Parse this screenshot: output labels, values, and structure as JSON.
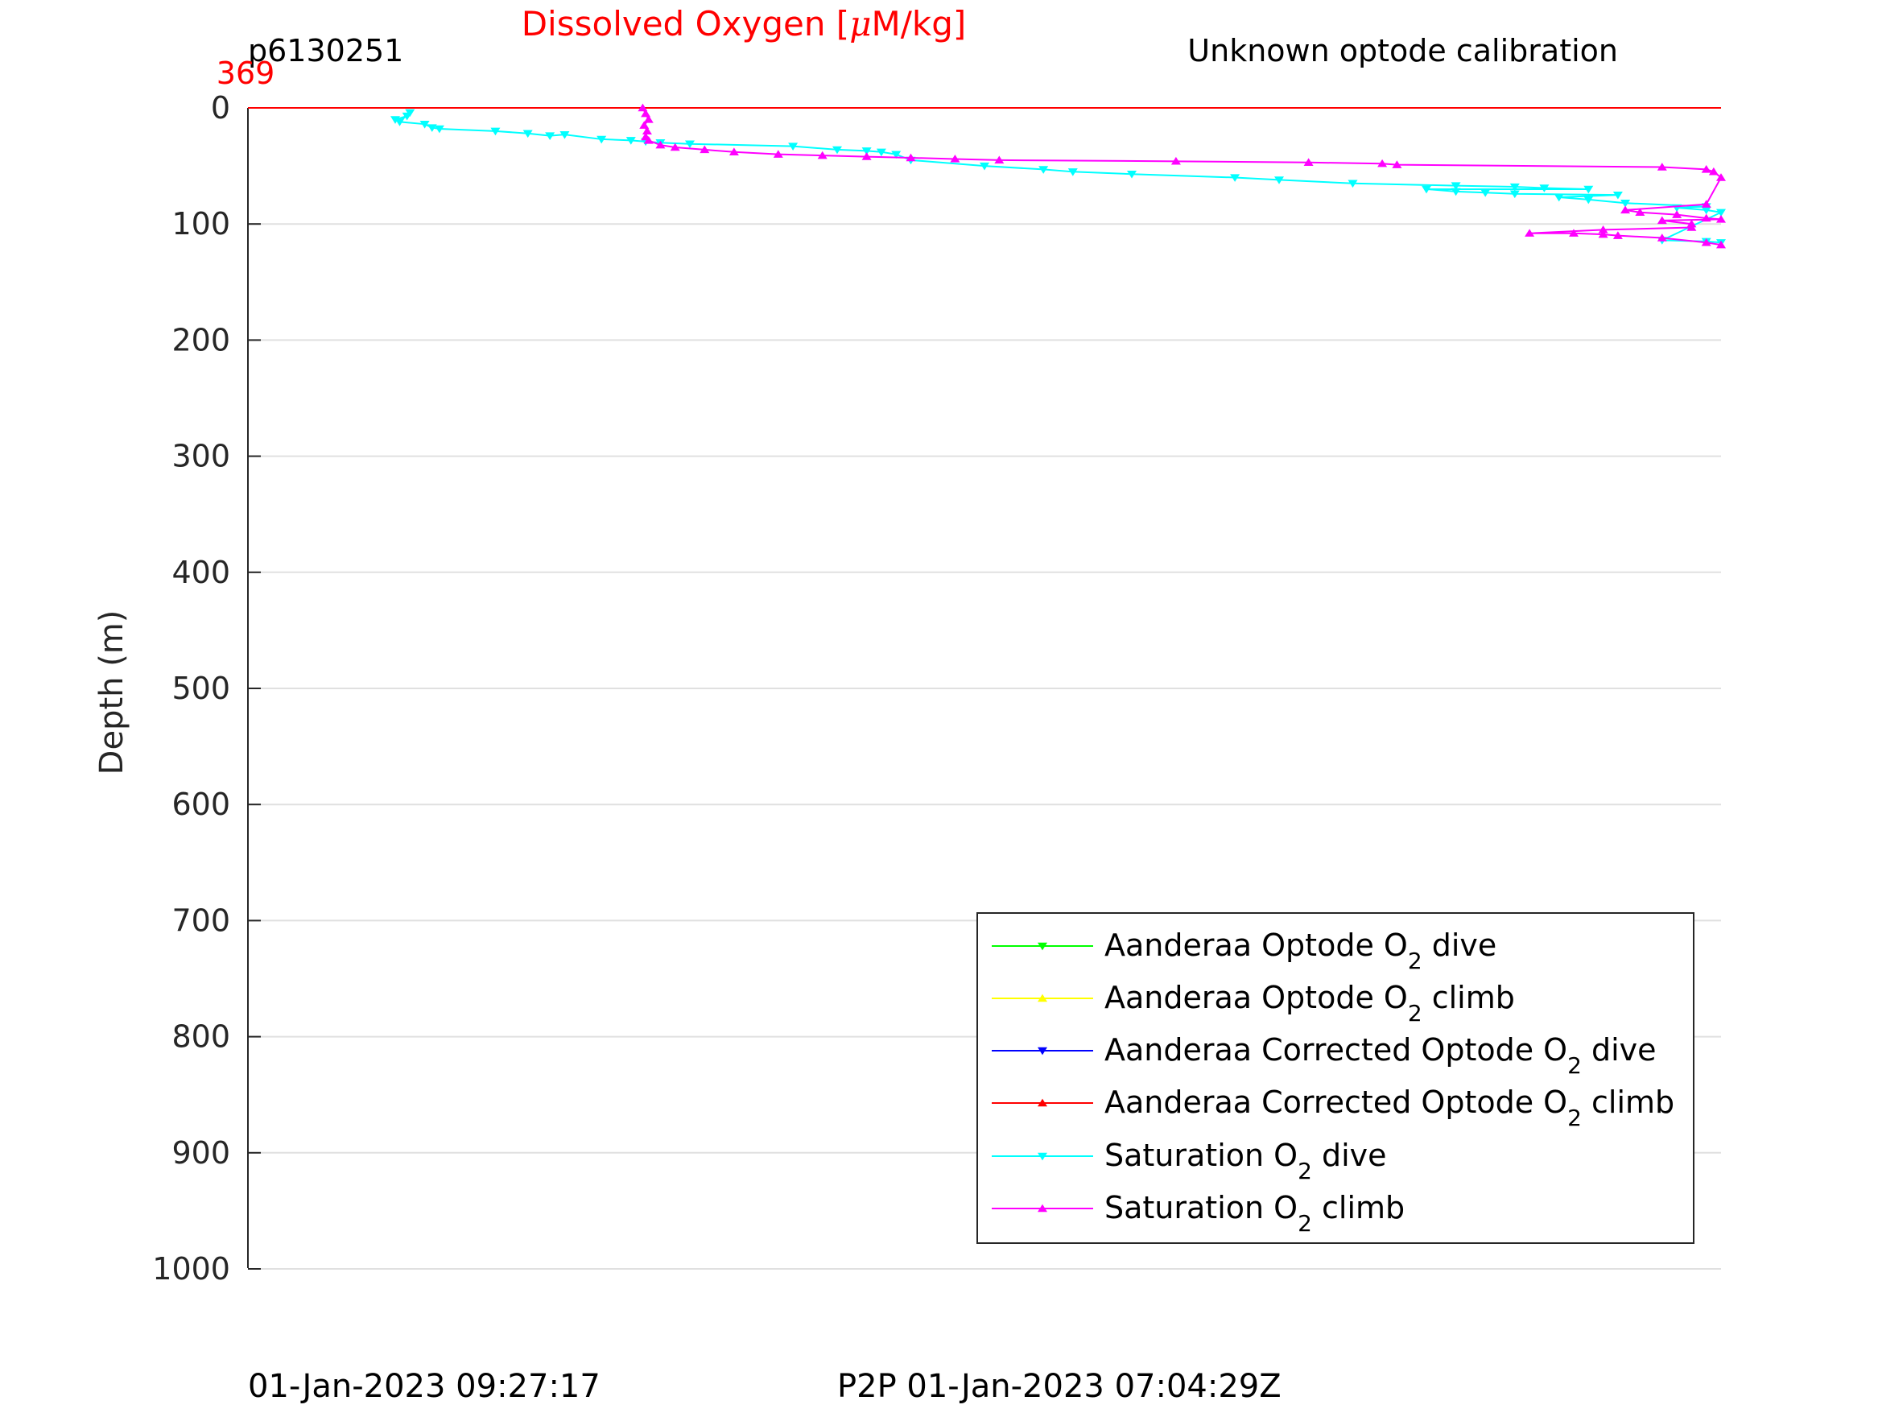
{
  "header": {
    "title": "Dissolved Oxygen [",
    "title_mu": "μ",
    "title_end": "M/kg]",
    "left": "p6130251",
    "right": "Unknown optode calibration",
    "top_value": "369"
  },
  "footer": {
    "left": "01-Jan-2023 09:27:17",
    "center": "P2P 01-Jan-2023 07:04:29Z"
  },
  "chart_data": {
    "type": "line",
    "ylabel": "Depth (m)",
    "ylim": [
      0,
      1000
    ],
    "y_reversed": true,
    "yticks": [
      0,
      100,
      200,
      300,
      400,
      500,
      600,
      700,
      800,
      900,
      1000
    ],
    "x_tick_labels": [],
    "grid": true,
    "legend_position": "bottom-right",
    "legend": [
      {
        "pre": "Aanderaa Optode O",
        "sub": "2",
        "post": " dive",
        "color": "#00ff00",
        "marker": "down"
      },
      {
        "pre": "Aanderaa Optode O",
        "sub": "2",
        "post": " climb",
        "color": "#ffff00",
        "marker": "up"
      },
      {
        "pre": "Aanderaa Corrected Optode O",
        "sub": "2",
        "post": " dive",
        "color": "#0000ff",
        "marker": "down"
      },
      {
        "pre": "Aanderaa Corrected Optode O",
        "sub": "2",
        "post": " climb",
        "color": "#ff0000",
        "marker": "up"
      },
      {
        "pre": "Saturation O",
        "sub": "2",
        "post": " dive",
        "color": "#00ffff",
        "marker": "down"
      },
      {
        "pre": "Saturation O",
        "sub": "2",
        "post": " climb",
        "color": "#ff00ff",
        "marker": "up"
      }
    ],
    "series": [
      {
        "name": "Aanderaa Corrected Optode O2 climb",
        "color": "#ff0000",
        "marker": "up",
        "x_fraction": [
          0.0,
          1.0
        ],
        "y": [
          0,
          0
        ]
      },
      {
        "name": "Saturation O2 dive",
        "color": "#00ffff",
        "marker": "down",
        "x_fraction": [
          0.1,
          0.108,
          0.11,
          0.103,
          0.12,
          0.125,
          0.13,
          0.168,
          0.19,
          0.205,
          0.215,
          0.24,
          0.26,
          0.27,
          0.28,
          0.3,
          0.37,
          0.4,
          0.42,
          0.43,
          0.44,
          0.45,
          0.5,
          0.54,
          0.56,
          0.6,
          0.67,
          0.7,
          0.75,
          0.82,
          0.86,
          0.88,
          0.91,
          0.8,
          0.82,
          0.84,
          0.86,
          0.93,
          0.89,
          0.91,
          0.935,
          0.99,
          0.97,
          0.99,
          1.0,
          0.96,
          0.99,
          1.0
        ],
        "y": [
          10,
          7,
          4,
          12,
          14,
          17,
          18,
          20,
          22,
          24,
          23,
          27,
          28,
          29,
          30,
          31,
          33,
          36,
          37,
          38,
          40,
          45,
          50,
          53,
          55,
          57,
          60,
          62,
          65,
          67,
          68,
          69,
          70,
          70,
          72,
          73,
          74,
          75,
          77,
          79,
          82,
          85,
          86,
          88,
          90,
          114,
          115,
          116
        ]
      },
      {
        "name": "Saturation O2 climb",
        "color": "#ff00ff",
        "marker": "up",
        "x_fraction": [
          0.268,
          0.27,
          0.272,
          0.269,
          0.271,
          0.27,
          0.272,
          0.28,
          0.29,
          0.31,
          0.33,
          0.36,
          0.39,
          0.42,
          0.45,
          0.48,
          0.51,
          0.63,
          0.72,
          0.77,
          0.78,
          0.96,
          0.99,
          0.995,
          1.0,
          0.99,
          0.935,
          0.945,
          0.97,
          0.99,
          1.0,
          0.96,
          0.98,
          0.98,
          0.92,
          0.87,
          0.9,
          0.92,
          0.93,
          0.96,
          0.99,
          1.0
        ],
        "y": [
          0,
          5,
          10,
          15,
          20,
          25,
          28,
          32,
          34,
          36,
          38,
          40,
          41,
          42,
          43,
          44,
          45,
          46,
          47,
          48,
          49,
          51,
          53,
          55,
          60,
          83,
          88,
          90,
          92,
          95,
          96,
          97,
          100,
          103,
          105,
          108,
          108,
          109,
          110,
          112,
          116,
          118
        ]
      }
    ]
  }
}
